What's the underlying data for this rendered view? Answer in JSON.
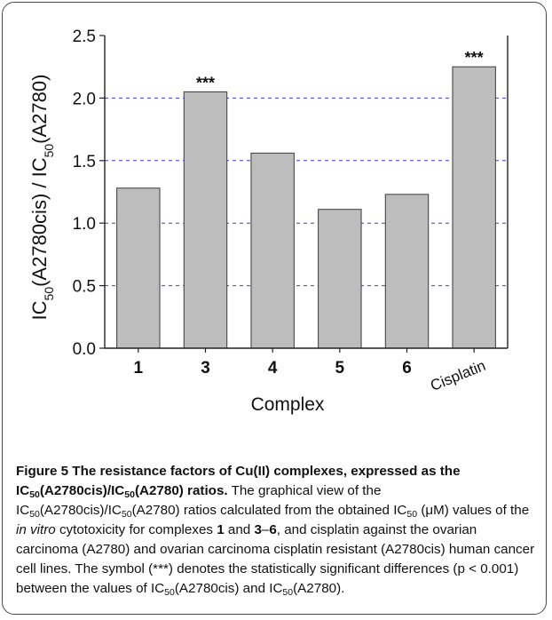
{
  "chart_data": {
    "type": "bar",
    "categories": [
      "1",
      "3",
      "4",
      "5",
      "6",
      "Cisplatin"
    ],
    "values": [
      1.28,
      2.05,
      1.56,
      1.11,
      1.23,
      2.25
    ],
    "annotations": [
      "",
      "***",
      "",
      "",
      "",
      "***"
    ],
    "ylim": [
      0,
      2.5
    ],
    "yticks": [
      "0.0",
      "0.5",
      "1.0",
      "1.5",
      "2.0",
      "2.5"
    ],
    "ylabel": "IC50(A2780cis) / IC50(A2780)",
    "xlabel": "Complex",
    "grid": "horizontal dashed",
    "colors": {
      "bar": "#bdbdbd",
      "bar_edge": "#3a3a3a",
      "grid": "#3b3bff",
      "axis": "#222222"
    }
  },
  "caption": {
    "title": "Figure 5 The resistance factors of Cu(II) complexes, expressed as the IC50(A2780cis)/IC50(A2780) ratios.",
    "text_1": " The graphical view of the IC",
    "sub_1": "50",
    "text_2": "(A2780cis)/IC",
    "sub_2": "50",
    "text_3": "(A2780) ratios calculated from the obtained IC",
    "sub_3": "50",
    "text_4": " (μM) values of the ",
    "italic_1": "in vitro",
    "text_5": " cytotoxicity for complexes ",
    "bold_1": "1",
    "text_6": " and ",
    "bold_2": "3",
    "text_7": "–",
    "bold_3": "6",
    "text_8": ", and cisplatin against the ovarian carcinoma (A2780) and ovarian carcinoma cisplatin resistant (A2780cis) human cancer cell lines. The symbol (***) denotes the statistically significant differences (p < 0.001) between the values of IC",
    "sub_4": "50",
    "text_9": "(A2780cis) and IC",
    "sub_5": "50",
    "text_10": "(A2780)."
  }
}
